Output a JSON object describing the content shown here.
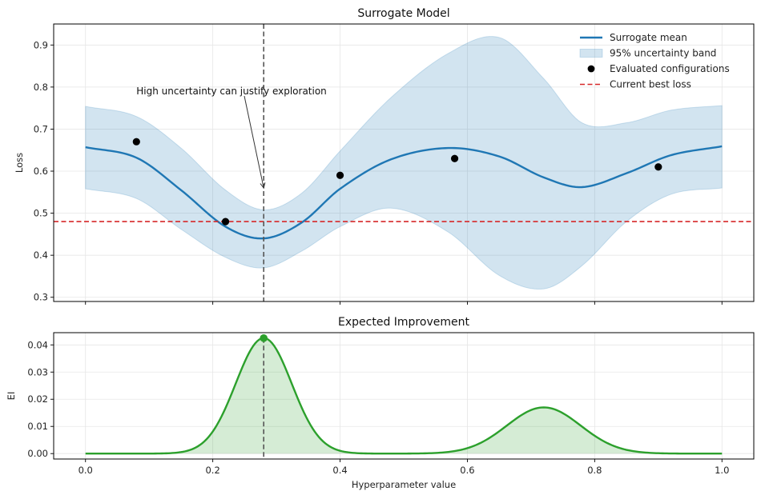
{
  "chart_data": [
    {
      "type": "line",
      "title": "Surrogate Model",
      "xlabel": "",
      "ylabel": "Loss",
      "xlim": [
        -0.05,
        1.05
      ],
      "ylim": [
        0.29,
        0.95
      ],
      "grid": true,
      "xticks": [
        0.0,
        0.2,
        0.4,
        0.6,
        0.8,
        1.0
      ],
      "yticks": [
        0.3,
        0.4,
        0.5,
        0.6,
        0.7,
        0.8,
        0.9
      ],
      "ytick_labels": [
        "0.3",
        "0.4",
        "0.5",
        "0.6",
        "0.7",
        "0.8",
        "0.9"
      ],
      "legend_position": "top-right",
      "legend": [
        {
          "label": "Surrogate mean",
          "kind": "line",
          "color": "#1f77b4"
        },
        {
          "label": "95% uncertainty band",
          "kind": "patch",
          "color": "#1f77b4"
        },
        {
          "label": "Evaluated configurations",
          "kind": "marker",
          "color": "#000000"
        },
        {
          "label": "Current best loss",
          "kind": "dashed",
          "color": "#d62728"
        }
      ],
      "series": [
        {
          "name": "Surrogate mean",
          "color": "#1f77b4",
          "x": [
            0.0,
            0.08,
            0.15,
            0.22,
            0.28,
            0.34,
            0.4,
            0.48,
            0.57,
            0.65,
            0.72,
            0.78,
            0.85,
            0.92,
            1.0
          ],
          "y": [
            0.657,
            0.632,
            0.555,
            0.468,
            0.44,
            0.478,
            0.558,
            0.628,
            0.655,
            0.635,
            0.585,
            0.562,
            0.595,
            0.638,
            0.659
          ]
        },
        {
          "name": "95% uncertainty band upper",
          "color": "#1f77b4",
          "x": [
            0.0,
            0.08,
            0.15,
            0.22,
            0.28,
            0.34,
            0.4,
            0.48,
            0.57,
            0.65,
            0.72,
            0.78,
            0.85,
            0.92,
            1.0
          ],
          "y": [
            0.754,
            0.73,
            0.655,
            0.555,
            0.508,
            0.548,
            0.648,
            0.775,
            0.88,
            0.918,
            0.82,
            0.715,
            0.715,
            0.745,
            0.756
          ]
        },
        {
          "name": "95% uncertainty band lower",
          "color": "#1f77b4",
          "x": [
            0.0,
            0.08,
            0.15,
            0.22,
            0.28,
            0.34,
            0.4,
            0.48,
            0.57,
            0.65,
            0.72,
            0.78,
            0.85,
            0.92,
            1.0
          ],
          "y": [
            0.558,
            0.535,
            0.462,
            0.395,
            0.37,
            0.41,
            0.468,
            0.512,
            0.455,
            0.352,
            0.32,
            0.375,
            0.48,
            0.545,
            0.56
          ]
        }
      ],
      "points": {
        "name": "Evaluated configurations",
        "x": [
          0.08,
          0.22,
          0.4,
          0.58,
          0.9
        ],
        "y": [
          0.67,
          0.48,
          0.59,
          0.63,
          0.61
        ]
      },
      "best_loss": 0.48,
      "vline_x": 0.28,
      "annotation": {
        "text": "High uncertainty can justify exploration",
        "text_xy": [
          0.08,
          0.79
        ],
        "arrow_to": [
          0.28,
          0.56
        ]
      }
    },
    {
      "type": "area",
      "title": "Expected Improvement",
      "xlabel": "Hyperparameter value",
      "ylabel": "EI",
      "xlim": [
        -0.05,
        1.05
      ],
      "ylim": [
        -0.002,
        0.0445
      ],
      "grid": true,
      "xticks": [
        0.0,
        0.2,
        0.4,
        0.6,
        0.8,
        1.0
      ],
      "xtick_labels": [
        "0.0",
        "0.2",
        "0.4",
        "0.6",
        "0.8",
        "1.0"
      ],
      "yticks": [
        0.0,
        0.01,
        0.02,
        0.03,
        0.04
      ],
      "ytick_labels": [
        "0.00",
        "0.01",
        "0.02",
        "0.03",
        "0.04"
      ],
      "color": "#2ca02c",
      "components": [
        {
          "center": 0.28,
          "amplitude": 0.0425,
          "sigma": 0.044
        },
        {
          "center": 0.72,
          "amplitude": 0.017,
          "sigma": 0.058
        }
      ],
      "x_range": [
        0.0,
        1.0
      ],
      "max_point": {
        "x": 0.28,
        "y": 0.0425
      },
      "vline_x": 0.28
    }
  ]
}
